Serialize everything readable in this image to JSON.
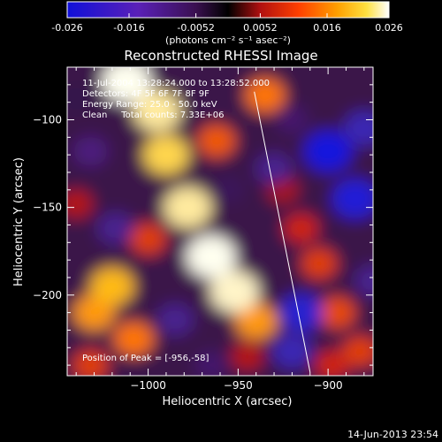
{
  "colorbar": {
    "ticks": [
      "-0.026",
      "-0.016",
      "-0.0052",
      "0.0052",
      "0.016",
      "0.026"
    ],
    "tick_values": [
      -0.026,
      -0.016,
      -0.0052,
      0.0052,
      0.016,
      0.026
    ],
    "units_label": "(photons cm⁻² s⁻¹ asec⁻²)",
    "range": [
      -0.026,
      0.026
    ],
    "colors": {
      "negative": [
        "#1010d8",
        "#5a20b8",
        "#3a1050"
      ],
      "zero": "#000000",
      "positive": [
        "#b01010",
        "#ff4000",
        "#ffa000",
        "#ffe040",
        "#ffffff"
      ]
    }
  },
  "chart_data": {
    "type": "heatmap",
    "title": "Reconstructed RHESSI Image",
    "xlabel": "Heliocentric X (arcsec)",
    "ylabel": "Heliocentric Y (arcsec)",
    "x_ticks": [
      -1000,
      -950,
      -900
    ],
    "y_ticks": [
      -100,
      -150,
      -200
    ],
    "xlim": [
      -1045,
      -875
    ],
    "ylim": [
      -246,
      -70
    ],
    "info_lines": [
      "11-Jul-2004 13:28:24.000 to 13:28:52.000",
      "Detectors: 4F 5F 6F 7F 8F 9F",
      "Energy Range: 25.0 - 50.0 keV",
      "Clean     Total counts: 7.33E+06"
    ],
    "peak_label": "Position of Peak = [-956,-58]",
    "peak_position": [
      -956,
      -58
    ],
    "limb_line": [
      [
        -941,
        -84
      ],
      [
        -910,
        -244
      ]
    ],
    "blobs": [
      {
        "x": -1012,
        "y": -78,
        "value": 0.026
      },
      {
        "x": -995,
        "y": -95,
        "value": 0.024
      },
      {
        "x": -990,
        "y": -120,
        "value": 0.022
      },
      {
        "x": -978,
        "y": -150,
        "value": 0.024
      },
      {
        "x": -965,
        "y": -178,
        "value": 0.026
      },
      {
        "x": -952,
        "y": -198,
        "value": 0.025
      },
      {
        "x": -940,
        "y": -215,
        "value": 0.018
      },
      {
        "x": -1020,
        "y": -195,
        "value": 0.02
      },
      {
        "x": -1030,
        "y": -210,
        "value": 0.018
      },
      {
        "x": -1008,
        "y": -225,
        "value": 0.016
      },
      {
        "x": -1032,
        "y": -240,
        "value": 0.012
      },
      {
        "x": -1000,
        "y": -168,
        "value": 0.012
      },
      {
        "x": -962,
        "y": -112,
        "value": 0.014
      },
      {
        "x": -915,
        "y": -162,
        "value": 0.01
      },
      {
        "x": -905,
        "y": -182,
        "value": 0.012
      },
      {
        "x": -895,
        "y": -210,
        "value": 0.013
      },
      {
        "x": -882,
        "y": -232,
        "value": 0.012
      },
      {
        "x": -898,
        "y": -240,
        "value": 0.01
      },
      {
        "x": -935,
        "y": -86,
        "value": 0.016
      },
      {
        "x": -1040,
        "y": -148,
        "value": 0.008
      },
      {
        "x": -925,
        "y": -140,
        "value": 0.007
      },
      {
        "x": -945,
        "y": -235,
        "value": 0.008
      },
      {
        "x": -920,
        "y": -100,
        "value": -0.008
      },
      {
        "x": -900,
        "y": -118,
        "value": -0.024
      },
      {
        "x": -885,
        "y": -145,
        "value": -0.022
      },
      {
        "x": -880,
        "y": -105,
        "value": -0.016
      },
      {
        "x": -930,
        "y": -128,
        "value": -0.012
      },
      {
        "x": -915,
        "y": -210,
        "value": -0.02
      },
      {
        "x": -920,
        "y": -232,
        "value": -0.016
      },
      {
        "x": -965,
        "y": -240,
        "value": -0.008
      },
      {
        "x": -1032,
        "y": -118,
        "value": -0.01
      },
      {
        "x": -1018,
        "y": -162,
        "value": -0.012
      },
      {
        "x": -985,
        "y": -214,
        "value": -0.012
      },
      {
        "x": -955,
        "y": -140,
        "value": -0.006
      },
      {
        "x": -875,
        "y": -192,
        "value": -0.012
      },
      {
        "x": -1040,
        "y": -88,
        "value": -0.004
      }
    ]
  },
  "footer": {
    "timestamp": "14-Jun-2013 23:54"
  }
}
